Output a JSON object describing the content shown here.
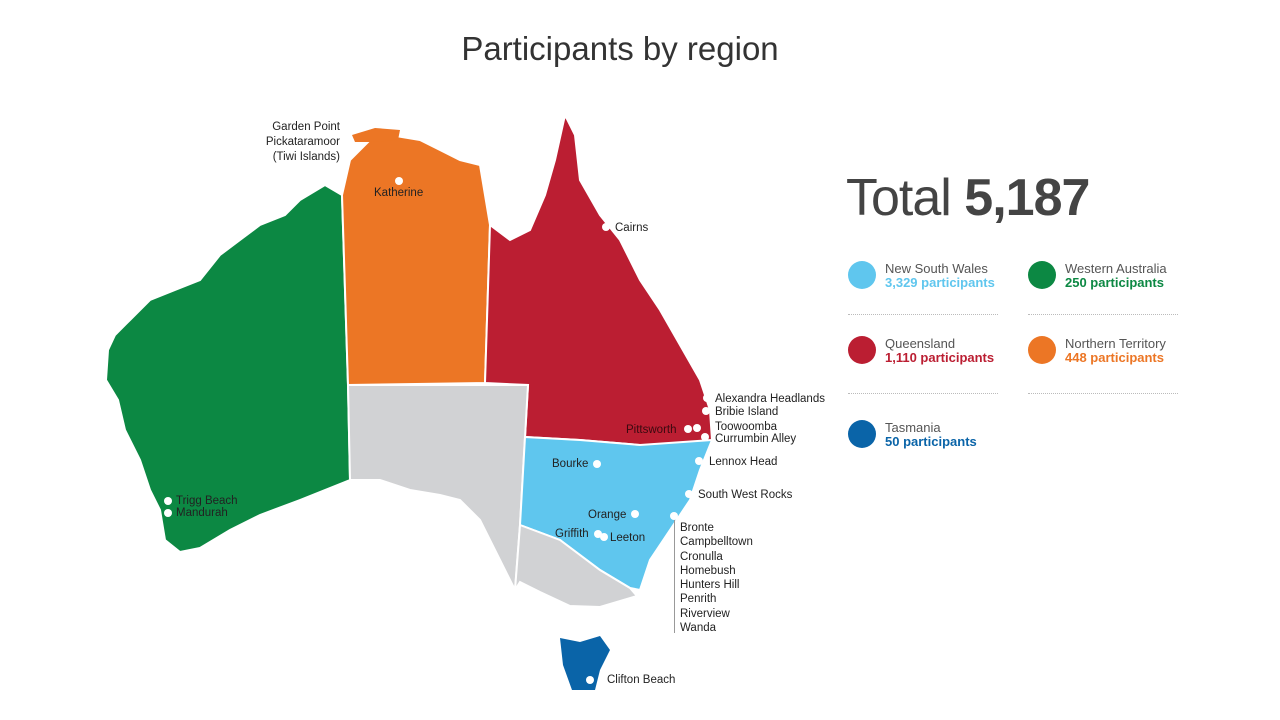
{
  "title": "Participants by region",
  "total": {
    "label": "Total",
    "value": "5,187"
  },
  "colors": {
    "nsw": "#5fc6ee",
    "wa": "#0c8843",
    "qld": "#bb1e32",
    "nt": "#ec7625",
    "tas": "#0a64a8",
    "other": "#d1d2d4"
  },
  "legend": [
    {
      "region": "New South Wales",
      "count": "3,329 participants",
      "color": "#5fc6ee"
    },
    {
      "region": "Western Australia",
      "count": "250 participants",
      "color": "#0c8843"
    },
    {
      "region": "Queensland",
      "count": "1,110 participants",
      "color": "#bb1e32"
    },
    {
      "region": "Northern Territory",
      "count": "448 participants",
      "color": "#ec7625"
    },
    {
      "region": "Tasmania",
      "count": "50 participants",
      "color": "#0a64a8"
    }
  ],
  "places": {
    "tiwi": [
      "Garden Point",
      "Pickataramoor",
      "(Tiwi Islands)"
    ],
    "katherine": "Katherine",
    "cairns": "Cairns",
    "alexandra": "Alexandra Headlands",
    "bribie": "Bribie Island",
    "toowoomba": "Toowoomba",
    "currumbin": "Currumbin Alley",
    "pittsworth": "Pittsworth",
    "bourke": "Bourke",
    "lennox": "Lennox Head",
    "swr": "South West Rocks",
    "orange": "Orange",
    "griffith": "Griffith",
    "leeton": "Leeton",
    "trigg": "Trigg Beach",
    "mandurah": "Mandurah",
    "clifton": "Clifton Beach",
    "sydney": [
      "Bronte",
      "Campbelltown",
      "Cronulla",
      "Homebush",
      "Hunters Hill",
      "Penrith",
      "Riverview",
      "Wanda"
    ]
  }
}
